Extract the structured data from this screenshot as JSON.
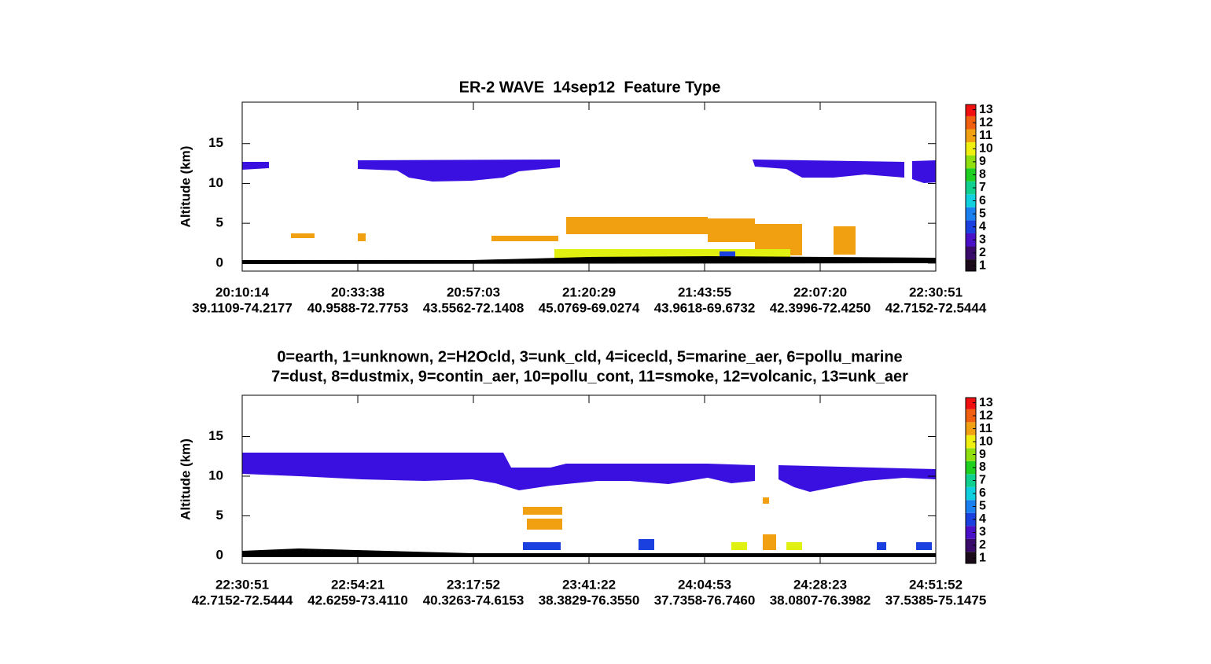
{
  "chart_data": [
    {
      "type": "curtain",
      "title": "ER-2 WAVE  14sep12  Feature Type",
      "ylabel": "Altitude (km)",
      "ylim": [
        -1,
        20.2
      ],
      "yticks": [
        0,
        5,
        10,
        15
      ],
      "xticks": [
        {
          "time": "20:10:14",
          "position": "39.1109-74.2177"
        },
        {
          "time": "20:33:38",
          "position": "40.9588-72.7753"
        },
        {
          "time": "20:57:03",
          "position": "43.5562-72.1408"
        },
        {
          "time": "21:20:29",
          "position": "45.0769-69.0274"
        },
        {
          "time": "21:43:55",
          "position": "43.9618-69.6732"
        },
        {
          "time": "22:07:20",
          "position": "42.3996-72.4250"
        },
        {
          "time": "22:30:51",
          "position": "42.7152-72.5444"
        }
      ],
      "colorbar": {
        "lim": [
          0.6,
          13.4
        ],
        "ticks": [
          1,
          2,
          3,
          4,
          5,
          6,
          7,
          8,
          9,
          10,
          11,
          12,
          13
        ],
        "colors": [
          "#1a0a1a",
          "#3a0a6a",
          "#4a10c8",
          "#1a40e0",
          "#1a80f0",
          "#10d0e0",
          "#10d090",
          "#20d020",
          "#90e010",
          "#f0f010",
          "#f0a010",
          "#f06010",
          "#f01010"
        ]
      }
    },
    {
      "type": "curtain",
      "title": [
        "0=earth, 1=unknown, 2=H2Ocld, 3=unk_cld, 4=icecld, 5=marine_aer, 6=pollu_marine",
        "7=dust, 8=dustmix, 9=contin_aer, 10=pollu_cont, 11=smoke, 12=volcanic, 13=unk_aer"
      ],
      "ylabel": "Altitude (km)",
      "ylim": [
        -1,
        20.2
      ],
      "yticks": [
        0,
        5,
        10,
        15
      ],
      "xticks": [
        {
          "time": "22:30:51",
          "position": "42.7152-72.5444"
        },
        {
          "time": "22:54:21",
          "position": "42.6259-73.4110"
        },
        {
          "time": "23:17:52",
          "position": "40.3263-74.6153"
        },
        {
          "time": "23:41:22",
          "position": "38.3829-76.3550"
        },
        {
          "time": "24:04:53",
          "position": "37.7358-76.7460"
        },
        {
          "time": "24:28:23",
          "position": "38.0807-76.3982"
        },
        {
          "time": "24:51:52",
          "position": "37.5385-75.1475"
        }
      ],
      "colorbar": {
        "lim": [
          0.6,
          13.4
        ],
        "ticks": [
          1,
          2,
          3,
          4,
          5,
          6,
          7,
          8,
          9,
          10,
          11,
          12,
          13
        ],
        "colors": [
          "#1a0a1a",
          "#3a0a6a",
          "#4a10c8",
          "#1a40e0",
          "#1a80f0",
          "#10d0e0",
          "#10d090",
          "#20d020",
          "#90e010",
          "#f0f010",
          "#f0a010",
          "#f06010",
          "#f01010"
        ]
      }
    }
  ]
}
